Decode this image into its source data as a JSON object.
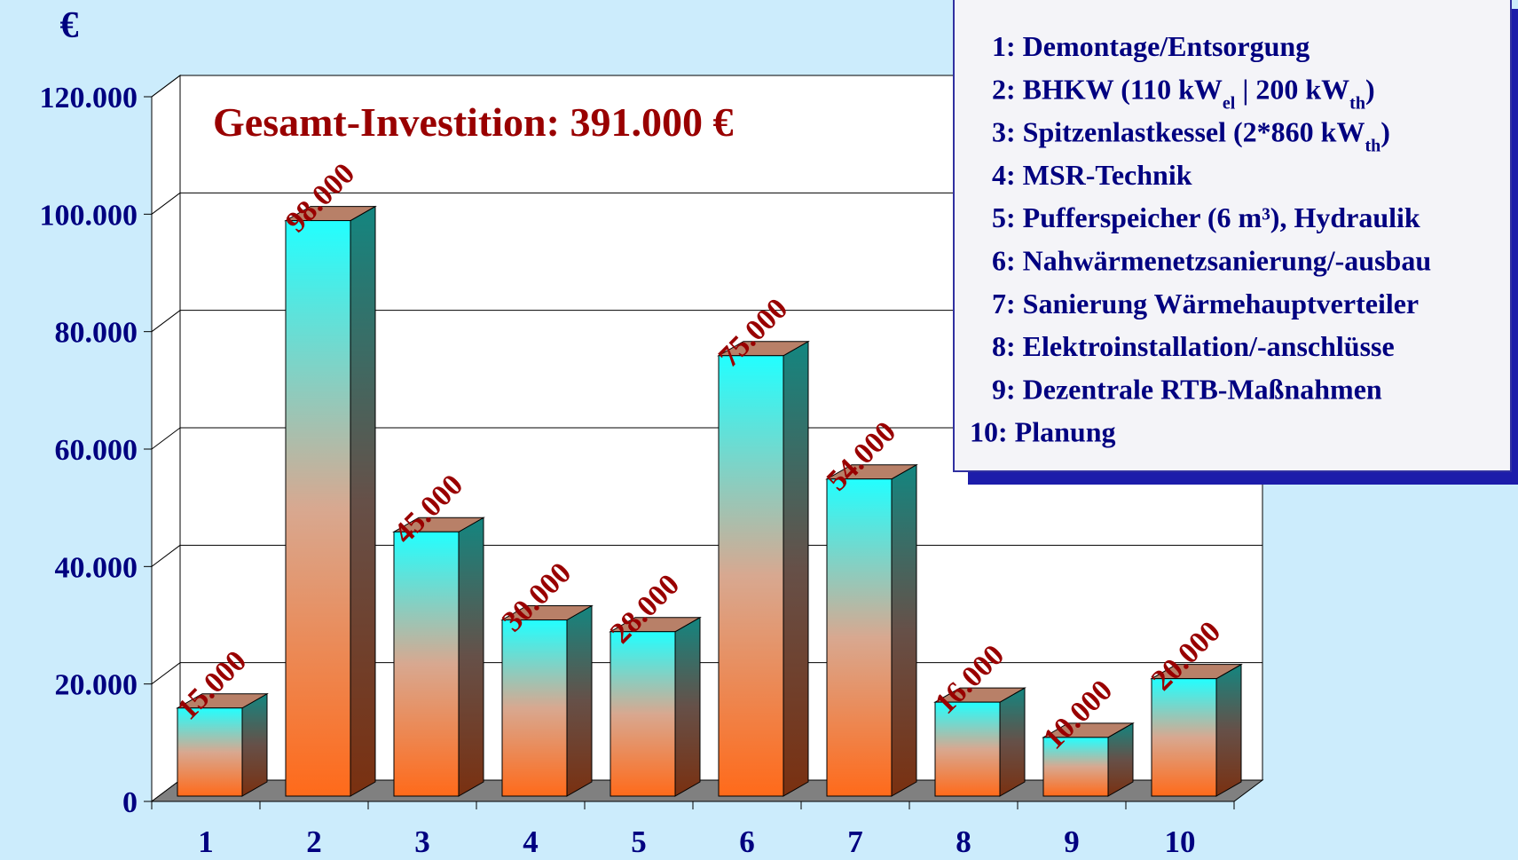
{
  "chart_data": {
    "type": "bar3d",
    "title": "€",
    "annotation": "Gesamt-Investition: 391.000 €",
    "categories": [
      "1",
      "2",
      "3",
      "4",
      "5",
      "6",
      "7",
      "8",
      "9",
      "10"
    ],
    "values": [
      15000,
      98000,
      45000,
      30000,
      28000,
      75000,
      54000,
      16000,
      10000,
      20000
    ],
    "value_labels": [
      "15.000",
      "98.000",
      "45.000",
      "30.000",
      "28.000",
      "75.000",
      "54.000",
      "16.000",
      "10.000",
      "20.000"
    ],
    "ylim": [
      0,
      120000
    ],
    "yticks": [
      0,
      {
        "value": 20000,
        "label": "20.000"
      },
      {
        "value": 40000,
        "label": "40.000"
      },
      {
        "value": 60000,
        "label": "60.000"
      },
      {
        "value": 80000,
        "label": "80.000"
      },
      {
        "value": 100000,
        "label": "100.000"
      },
      {
        "value": 120000,
        "label": "120.000"
      }
    ],
    "grid": true,
    "legend": [
      [
        "1: Demontage/Entsorgung"
      ],
      [
        "2: BHKW (110 kW",
        "el",
        " | 200 kW",
        "th",
        ")"
      ],
      [
        "3: Spitzenlastkessel (2*860 kW",
        "th",
        ")"
      ],
      [
        "4: MSR-Technik"
      ],
      [
        "5: Pufferspeicher (6 m³), Hydraulik"
      ],
      [
        "6: Nahwärmenetzsanierung/-ausbau"
      ],
      [
        "7: Sanierung Wärmehauptverteiler"
      ],
      [
        "8: Elektroinstallation/-anschlüsse"
      ],
      [
        "9: Dezentrale RTB-Maßnahmen"
      ],
      [
        "10: Planung"
      ]
    ]
  }
}
